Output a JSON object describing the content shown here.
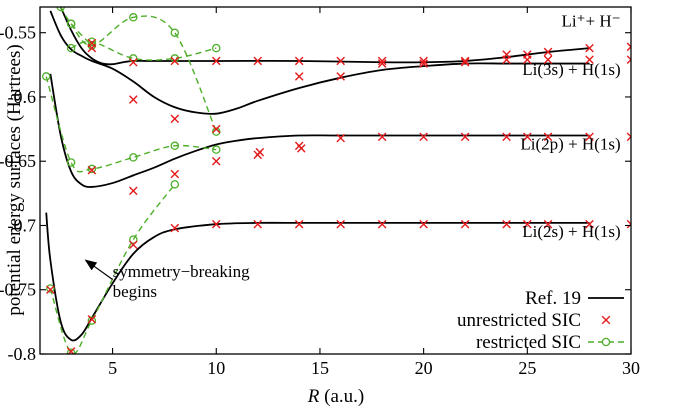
{
  "chart_data": {
    "type": "line",
    "xlabel_italic": "R",
    "xlabel_rest": " (a.u.)",
    "ylabel": "potential energy surfaces (Hartrees)",
    "xlim": [
      1.5,
      30
    ],
    "ylim": [
      -0.8,
      -0.53
    ],
    "xticks": [
      5,
      10,
      15,
      20,
      25,
      30
    ],
    "yticks": [
      -0.55,
      -0.6,
      -0.65,
      -0.7,
      -0.75,
      -0.8
    ],
    "ytick_labels": [
      "-0.55",
      "-0.6",
      "-0.65",
      "-0.7",
      "-0.75",
      "-0.8"
    ],
    "curve_labels": [
      {
        "text": "Li⁺+ H⁻",
        "x": 29.5,
        "y": -0.545
      },
      {
        "text": "Li(3s) + H(1s)",
        "x": 29.5,
        "y": -0.583
      },
      {
        "text": "Li(2p) + H(1s)",
        "x": 29.5,
        "y": -0.641
      },
      {
        "text": "Li(2s) + H(1s)",
        "x": 29.5,
        "y": -0.709
      }
    ],
    "annotation": {
      "lines": [
        "symmetry−breaking",
        "begins"
      ],
      "text_x": 5.0,
      "text_y": -0.74,
      "arrow_from": [
        5.0,
        -0.742
      ],
      "arrow_to": [
        3.7,
        -0.727
      ]
    },
    "legend": {
      "placement": "bottom-right",
      "entries": [
        "Ref. 19",
        "unrestricted SIC",
        "restricted SIC"
      ]
    },
    "colors": {
      "ref": "#000000",
      "unrestricted": "#e41a1c",
      "restricted": "#4daf29"
    },
    "series": [
      {
        "name": "Ref. 19",
        "style": "line",
        "curves": [
          {
            "x": [
              1.8,
              2.0,
              2.5,
              3.0,
              3.5,
              4.0,
              5.0,
              6.0,
              7.0,
              8.0,
              10.0,
              12.0,
              14.0,
              16.0,
              20.0,
              28.0
            ],
            "y": [
              -0.69,
              -0.727,
              -0.775,
              -0.789,
              -0.785,
              -0.772,
              -0.745,
              -0.722,
              -0.709,
              -0.703,
              -0.699,
              -0.698,
              -0.698,
              -0.698,
              -0.698,
              -0.698
            ]
          },
          {
            "x": [
              2.0,
              2.5,
              3.0,
              3.5,
              4.0,
              5.0,
              6.0,
              7.0,
              8.0,
              9.0,
              10.0,
              11.0,
              12.0,
              14.0,
              16.0,
              20.0,
              28.0
            ],
            "y": [
              -0.582,
              -0.63,
              -0.658,
              -0.668,
              -0.67,
              -0.667,
              -0.661,
              -0.655,
              -0.648,
              -0.642,
              -0.637,
              -0.634,
              -0.632,
              -0.63,
              -0.63,
              -0.63,
              -0.63
            ]
          },
          {
            "x": [
              2.0,
              2.5,
              3.0,
              3.5,
              4.0,
              5.0,
              6.0,
              7.0,
              8.0,
              9.0,
              10.0,
              11.0,
              12.0,
              14.0,
              16.0,
              18.0,
              20.0,
              22.0,
              24.0,
              26.0,
              28.0
            ],
            "y": [
              -0.533,
              -0.552,
              -0.563,
              -0.568,
              -0.572,
              -0.578,
              -0.588,
              -0.6,
              -0.608,
              -0.612,
              -0.613,
              -0.609,
              -0.603,
              -0.593,
              -0.585,
              -0.579,
              -0.576,
              -0.574,
              -0.574,
              -0.574,
              -0.574
            ]
          },
          {
            "x": [
              2.5,
              3.0,
              3.5,
              4.0,
              4.5,
              5.0,
              5.5,
              6.0,
              7.0,
              8.0,
              10.0,
              14.0,
              18.0,
              20.0,
              22.0,
              24.0,
              26.0,
              28.0
            ],
            "y": [
              -0.53,
              -0.548,
              -0.562,
              -0.57,
              -0.574,
              -0.5745,
              -0.573,
              -0.572,
              -0.572,
              -0.572,
              -0.572,
              -0.572,
              -0.573,
              -0.573,
              -0.572,
              -0.569,
              -0.565,
              -0.562
            ]
          }
        ]
      },
      {
        "name": "unrestricted SIC",
        "style": "x",
        "points": [
          [
            2.0,
            -0.75
          ],
          [
            3.0,
            -0.798
          ],
          [
            4.0,
            -0.773
          ],
          [
            6.0,
            -0.715
          ],
          [
            8.0,
            -0.702
          ],
          [
            10.0,
            -0.699
          ],
          [
            12.0,
            -0.699
          ],
          [
            14.0,
            -0.699
          ],
          [
            16.0,
            -0.699
          ],
          [
            18.0,
            -0.699
          ],
          [
            20.0,
            -0.699
          ],
          [
            22.0,
            -0.699
          ],
          [
            24.0,
            -0.699
          ],
          [
            25.0,
            -0.699
          ],
          [
            26.0,
            -0.699
          ],
          [
            28.0,
            -0.699
          ],
          [
            30.0,
            -0.699
          ],
          [
            4.0,
            -0.657
          ],
          [
            6.0,
            -0.673
          ],
          [
            8.0,
            -0.66
          ],
          [
            10.0,
            -0.65
          ],
          [
            12.0,
            -0.645
          ],
          [
            12.1,
            -0.643
          ],
          [
            14.0,
            -0.638
          ],
          [
            14.1,
            -0.64
          ],
          [
            16.0,
            -0.632
          ],
          [
            18.0,
            -0.631
          ],
          [
            20.0,
            -0.631
          ],
          [
            22.0,
            -0.631
          ],
          [
            24.0,
            -0.631
          ],
          [
            25.0,
            -0.631
          ],
          [
            26.0,
            -0.631
          ],
          [
            28.0,
            -0.631
          ],
          [
            30.0,
            -0.631
          ],
          [
            4.0,
            -0.558
          ],
          [
            6.0,
            -0.602
          ],
          [
            8.0,
            -0.617
          ],
          [
            10.0,
            -0.625
          ],
          [
            14.0,
            -0.584
          ],
          [
            16.0,
            -0.584
          ],
          [
            18.0,
            -0.574
          ],
          [
            20.0,
            -0.574
          ],
          [
            22.0,
            -0.573
          ],
          [
            24.0,
            -0.571
          ],
          [
            25.0,
            -0.571
          ],
          [
            26.0,
            -0.571
          ],
          [
            28.0,
            -0.571
          ],
          [
            30.0,
            -0.571
          ],
          [
            4.0,
            -0.562
          ],
          [
            6.0,
            -0.573
          ],
          [
            8.0,
            -0.572
          ],
          [
            10.0,
            -0.572
          ],
          [
            12.0,
            -0.572
          ],
          [
            14.0,
            -0.572
          ],
          [
            16.0,
            -0.572
          ],
          [
            18.0,
            -0.572
          ],
          [
            20.0,
            -0.572
          ],
          [
            22.0,
            -0.572
          ],
          [
            24.0,
            -0.567
          ],
          [
            25.0,
            -0.567
          ],
          [
            26.0,
            -0.565
          ],
          [
            28.0,
            -0.562
          ],
          [
            30.0,
            -0.561
          ]
        ]
      },
      {
        "name": "restricted SIC",
        "style": "dashed-circle",
        "curves": [
          {
            "x": [
              2.0,
              3.0,
              4.0,
              6.0,
              8.0
            ],
            "y": [
              -0.749,
              -0.799,
              -0.774,
              -0.711,
              -0.668
            ]
          },
          {
            "x": [
              1.8,
              3.0,
              4.0,
              6.0,
              8.0,
              10.0
            ],
            "y": [
              -0.584,
              -0.651,
              -0.656,
              -0.647,
              -0.638,
              -0.641
            ]
          },
          {
            "x": [
              3.0,
              4.0,
              6.0,
              8.0,
              10.0
            ],
            "y": [
              -0.562,
              -0.557,
              -0.57,
              -0.57,
              -0.562
            ]
          },
          {
            "x": [
              3.0,
              4.0,
              6.0,
              8.0,
              10.0
            ],
            "y": [
              -0.543,
              -0.56,
              -0.538,
              -0.55,
              -0.627
            ]
          },
          {
            "x": [
              2.5,
              3.0,
              4.0
            ],
            "y": [
              -0.53,
              -0.543,
              -0.56
            ]
          }
        ]
      }
    ]
  }
}
